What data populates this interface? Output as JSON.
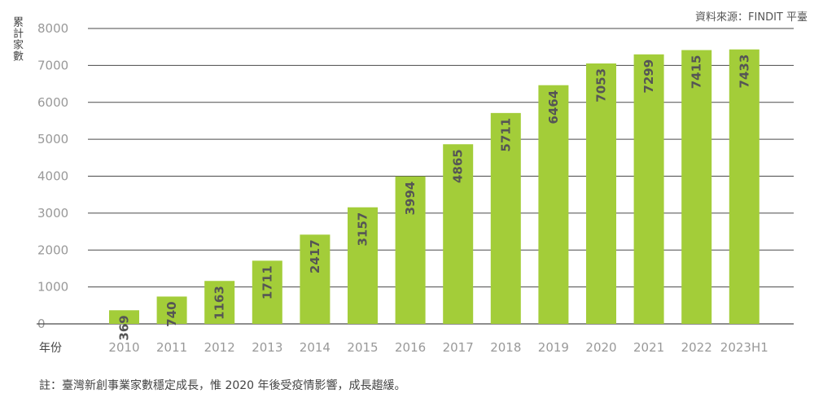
{
  "chart_data": {
    "type": "bar",
    "ylabel": "累計家數",
    "xlabel": "年份",
    "source": "資料來源：FINDIT 平臺",
    "note": "註：臺灣新創事業家數穩定成長，惟 2020 年後受疫情影響，成長趨緩。",
    "categories": [
      "2010",
      "2011",
      "2012",
      "2013",
      "2014",
      "2015",
      "2016",
      "2017",
      "2018",
      "2019",
      "2020",
      "2021",
      "2022",
      "2023H1"
    ],
    "values": [
      369,
      740,
      1163,
      1711,
      2417,
      3157,
      3994,
      4865,
      5711,
      6464,
      7053,
      7299,
      7415,
      7433
    ],
    "yticks": [
      0,
      1000,
      2000,
      3000,
      4000,
      5000,
      6000,
      7000,
      8000
    ],
    "ylim": [
      0,
      8000
    ],
    "grid": true,
    "bar_color": "#a3cd39",
    "grid_color": "#4a4a4a"
  }
}
